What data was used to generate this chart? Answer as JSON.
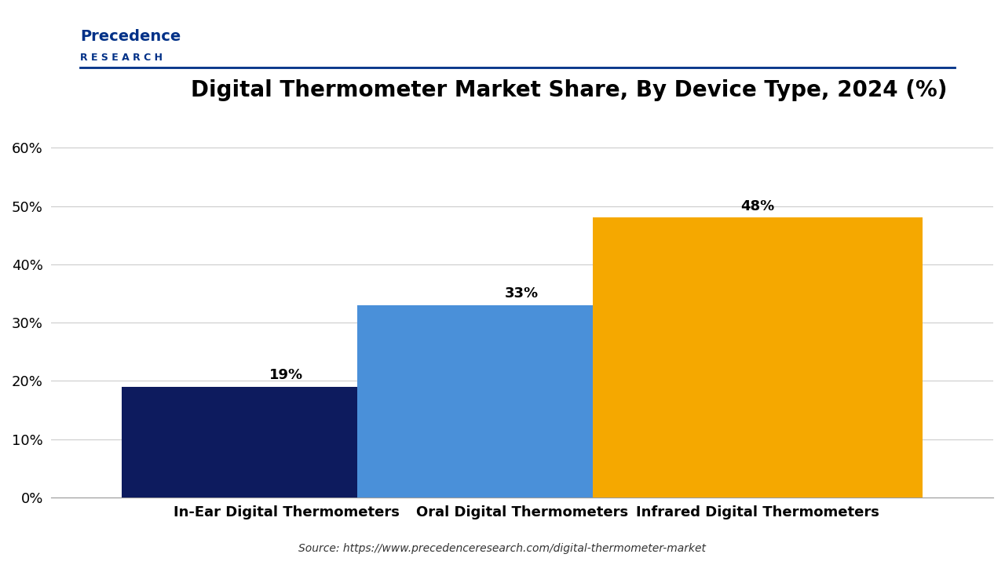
{
  "title": "Digital Thermometer Market Share, By Device Type, 2024 (%)",
  "categories": [
    "In-Ear Digital Thermometers",
    "Oral Digital Thermometers",
    "Infrared Digital Thermometers"
  ],
  "values": [
    19,
    33,
    48
  ],
  "bar_colors": [
    "#0d1b5e",
    "#4a90d9",
    "#f5a800"
  ],
  "value_labels": [
    "19%",
    "33%",
    "48%"
  ],
  "ylim": [
    0,
    65
  ],
  "yticks": [
    0,
    10,
    20,
    30,
    40,
    50,
    60
  ],
  "ytick_labels": [
    "0%",
    "10%",
    "20%",
    "30%",
    "40%",
    "50%",
    "60%"
  ],
  "source_text": "Source: https://www.precedenceresearch.com/digital-thermometer-market",
  "background_color": "#ffffff",
  "title_fontsize": 20,
  "label_fontsize": 13,
  "tick_fontsize": 13,
  "bar_width": 0.35,
  "grid_color": "#cccccc",
  "logo_line1": "Precedence",
  "logo_line2": "R E S E A R C H",
  "logo_color": "#003087",
  "separator_color": "#003087"
}
